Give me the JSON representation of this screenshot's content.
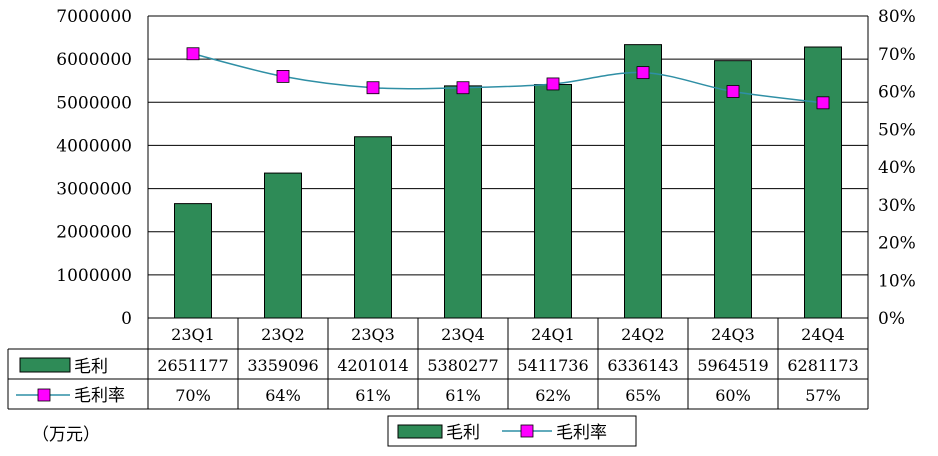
{
  "chart_data": {
    "type": "bar",
    "title": "",
    "unit_label": "（万元）",
    "categories": [
      "23Q1",
      "23Q2",
      "23Q3",
      "23Q4",
      "24Q1",
      "24Q2",
      "24Q3",
      "24Q4"
    ],
    "series": [
      {
        "name": "毛利",
        "kind": "bar",
        "axis": "left",
        "values": [
          2651177,
          3359096,
          4201014,
          5380277,
          5411736,
          6336143,
          5964519,
          6281173
        ],
        "display": [
          "2651177",
          "3359096",
          "4201014",
          "5380277",
          "5411736",
          "6336143",
          "5964519",
          "6281173"
        ]
      },
      {
        "name": "毛利率",
        "kind": "line",
        "axis": "right",
        "values": [
          0.7,
          0.64,
          0.61,
          0.61,
          0.62,
          0.65,
          0.6,
          0.57
        ],
        "display": [
          "70%",
          "64%",
          "61%",
          "61%",
          "62%",
          "65%",
          "60%",
          "57%"
        ]
      }
    ],
    "y_left": {
      "range": [
        0,
        7000000
      ],
      "ticks": [
        "0",
        "1000000",
        "2000000",
        "3000000",
        "4000000",
        "5000000",
        "6000000",
        "7000000"
      ]
    },
    "y_right": {
      "range": [
        0,
        0.8
      ],
      "ticks": [
        "0%",
        "10%",
        "20%",
        "30%",
        "40%",
        "50%",
        "60%",
        "70%",
        "80%"
      ]
    },
    "legend": {
      "position": "bottom-center",
      "entries": [
        "毛利",
        "毛利率"
      ]
    },
    "grid": true,
    "data_table": true
  },
  "colors": {
    "bar_fill": "#2e8b57",
    "line": "#2f8fa5",
    "marker": "#ff00ff",
    "grid": "#000000"
  }
}
